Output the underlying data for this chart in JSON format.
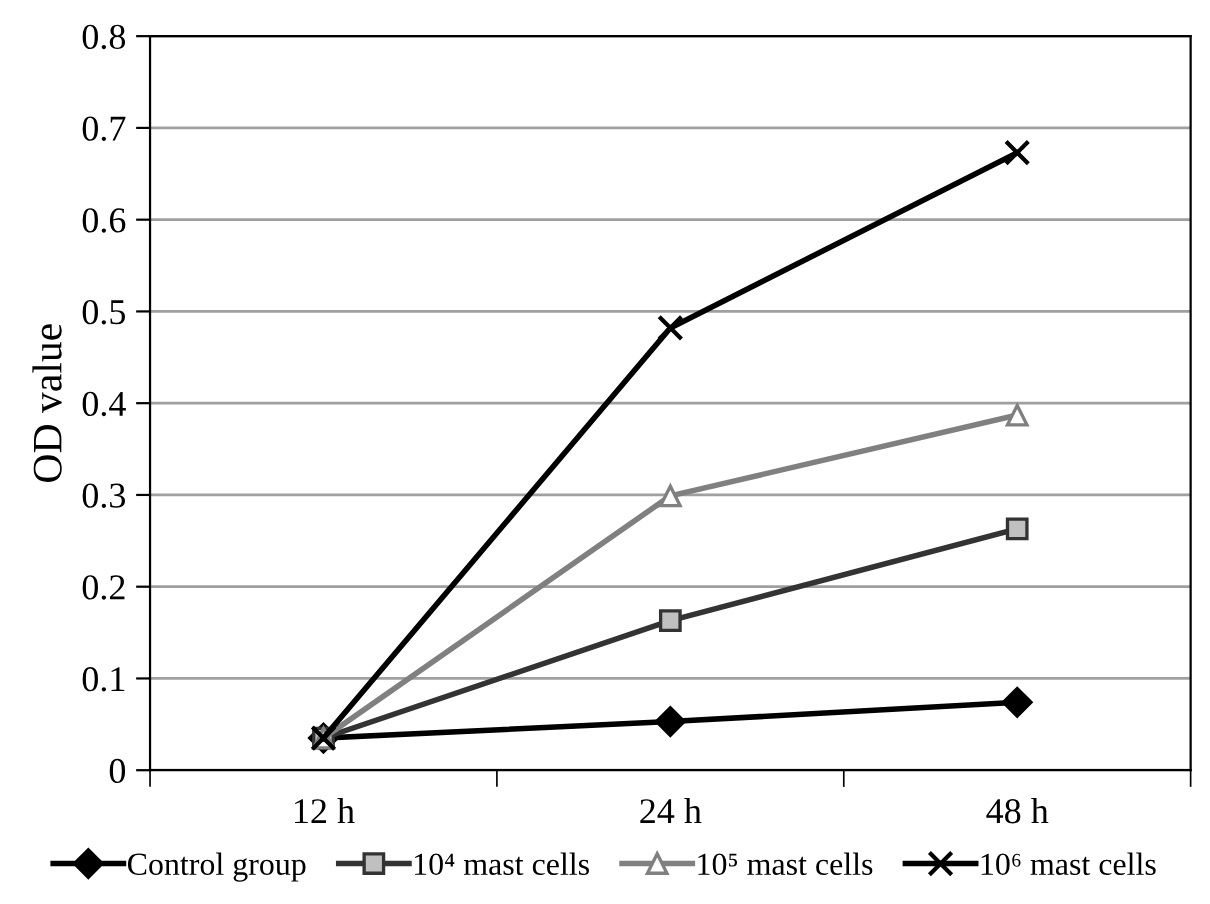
{
  "chart_data": {
    "type": "line",
    "ylabel": "OD value",
    "categories": [
      "12 h",
      "24 h",
      "48 h"
    ],
    "series": [
      {
        "name": "Control group",
        "color": "#000000",
        "marker": "diamond",
        "values": [
          0.035,
          0.053,
          0.074
        ]
      },
      {
        "name": "10⁴ mast cells",
        "color": "#333333",
        "marker": "square",
        "values": [
          0.035,
          0.163,
          0.263
        ]
      },
      {
        "name": "10⁵ mast cells",
        "color": "#808080",
        "marker": "triangle",
        "values": [
          0.035,
          0.299,
          0.387
        ]
      },
      {
        "name": "10⁶ mast cells",
        "color": "#000000",
        "marker": "cross",
        "values": [
          0.035,
          0.482,
          0.673
        ]
      }
    ],
    "ylim": [
      0,
      0.8
    ],
    "yticks": [
      0,
      0.1,
      0.2,
      0.3,
      0.4,
      0.5,
      0.6,
      0.7,
      0.8
    ],
    "grid": "y",
    "legend": "bottom",
    "line_style": "solid"
  }
}
